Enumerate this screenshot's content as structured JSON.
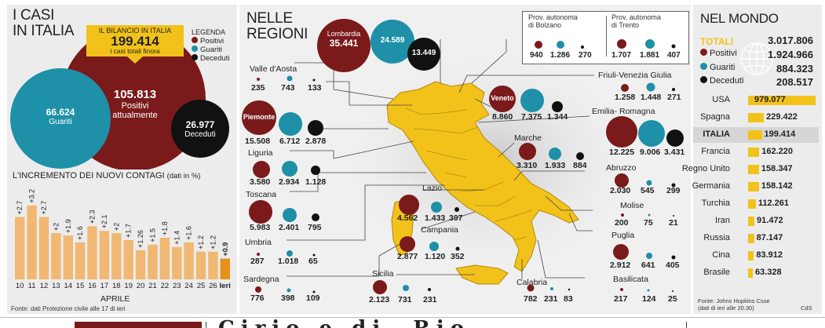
{
  "left": {
    "title_line1": "I CASI",
    "title_line2": "IN ITALIA",
    "bilancio_title": "IL BILANCIO IN ITALIA",
    "bilancio_value": "199.414",
    "bilancio_sub": "i casi totali finora",
    "legend_title": "LEGENDA",
    "legend": [
      {
        "label": "Positivi",
        "color": "#7a1a1a"
      },
      {
        "label": "Guariti",
        "color": "#1e90a8"
      },
      {
        "label": "Deceduti",
        "color": "#111111"
      }
    ],
    "positivi_value": "105.813",
    "positivi_label1": "Positivi",
    "positivi_label2": "attualmente",
    "guariti_value": "66.624",
    "guariti_label": "Guariti",
    "deceduti_value": "26.977",
    "deceduti_label": "Deceduti",
    "increment_title": "L'INCREMENTO DEI NUOVI CONTAGI",
    "increment_note": "(dati in %)",
    "month": "APRILE",
    "source": "Fonte: dati Protezione civile alle 17 di ieri"
  },
  "chart_data": {
    "type": "bar",
    "title": "L'INCREMENTO DEI NUOVI CONTAGI (dati in %)",
    "xlabel": "APRILE",
    "categories": [
      "10",
      "11",
      "12",
      "13",
      "14",
      "15",
      "16",
      "17",
      "18",
      "19",
      "20",
      "21",
      "22",
      "23",
      "24",
      "25",
      "26",
      "Ieri"
    ],
    "values": [
      2.7,
      3.2,
      2.7,
      2,
      1.9,
      1.6,
      2.3,
      2.1,
      2,
      1.7,
      1.26,
      1.5,
      1.8,
      1.4,
      1.6,
      1.2,
      1.2,
      0.9
    ],
    "value_labels": [
      "+2.7",
      "+3.2",
      "+2.7",
      "+2",
      "+1.9",
      "+1.6",
      "+2.3",
      "+2.1",
      "+2",
      "+1.7",
      "+1.26",
      "+1.5",
      "+1.8",
      "+1.4",
      "+1.6",
      "+1.2",
      "+1.2",
      "+0.9"
    ],
    "ylim": [
      0,
      3.6
    ]
  },
  "regions": {
    "title_line1": "NELLE",
    "title_line2": "REGIONI",
    "items": [
      {
        "name": "Valle d'Aosta",
        "p": "235",
        "g": "743",
        "d": "133"
      },
      {
        "name": "Piemonte",
        "p": "15.508",
        "g": "6.712",
        "d": "2.878"
      },
      {
        "name": "Liguria",
        "p": "3.580",
        "g": "2.934",
        "d": "1.128"
      },
      {
        "name": "Toscana",
        "p": "5.983",
        "g": "2.401",
        "d": "795"
      },
      {
        "name": "Umbria",
        "p": "287",
        "g": "1.018",
        "d": "65"
      },
      {
        "name": "Sardegna",
        "p": "776",
        "g": "398",
        "d": "109"
      },
      {
        "name": "Lombardia",
        "p": "35.441",
        "g": "24.589",
        "d": "13.449"
      },
      {
        "name": "Veneto",
        "p": "8.860",
        "g": "7.375",
        "d": "1.344"
      },
      {
        "name": "Friuli-Venezia Giulia",
        "p": "1.258",
        "g": "1.448",
        "d": "271"
      },
      {
        "name": "Emilia- Romagna",
        "p": "12.225",
        "g": "9.006",
        "d": "3.431"
      },
      {
        "name": "Marche",
        "p": "3.310",
        "g": "1.933",
        "d": "884"
      },
      {
        "name": "Abruzzo",
        "p": "2.030",
        "g": "545",
        "d": "299"
      },
      {
        "name": "Molise",
        "p": "200",
        "g": "75",
        "d": "21"
      },
      {
        "name": "Puglia",
        "p": "2.912",
        "g": "641",
        "d": "405"
      },
      {
        "name": "Lazio",
        "p": "4.562",
        "g": "1.433",
        "d": "397"
      },
      {
        "name": "Campania",
        "p": "2.877",
        "g": "1.120",
        "d": "352"
      },
      {
        "name": "Sicilia",
        "p": "2.123",
        "g": "731",
        "d": "231"
      },
      {
        "name": "Calabria",
        "p": "782",
        "g": "231",
        "d": "83"
      },
      {
        "name": "Basilicata",
        "p": "217",
        "g": "124",
        "d": "25"
      },
      {
        "name": "Prov. autonoma di Bolzano",
        "p": "940",
        "g": "1.286",
        "d": "270"
      },
      {
        "name": "Prov. autonoma di Trento",
        "p": "1.707",
        "g": "1.881",
        "d": "407"
      }
    ]
  },
  "world": {
    "title": "NEL MONDO",
    "totali_label": "TOTALI",
    "totali_value": "3.017.806",
    "positivi_label": "Positivi",
    "positivi_value": "1.924.966",
    "guariti_label": "Guariti",
    "guariti_value": "884.323",
    "deceduti_label": "Deceduti",
    "deceduti_value": "208.517",
    "countries": [
      {
        "name": "USA",
        "value": 979077,
        "label": "979.077"
      },
      {
        "name": "Spagna",
        "value": 229422,
        "label": "229.422"
      },
      {
        "name": "ITALIA",
        "value": 199414,
        "label": "199.414"
      },
      {
        "name": "Francia",
        "value": 162220,
        "label": "162.220"
      },
      {
        "name": "Regno Unito",
        "value": 158347,
        "label": "158.347"
      },
      {
        "name": "Germania",
        "value": 158142,
        "label": "158.142"
      },
      {
        "name": "Turchia",
        "value": 112261,
        "label": "112.261"
      },
      {
        "name": "Iran",
        "value": 91472,
        "label": "91.472"
      },
      {
        "name": "Russia",
        "value": 87147,
        "label": "87.147"
      },
      {
        "name": "Cina",
        "value": 83912,
        "label": "83.912"
      },
      {
        "name": "Brasile",
        "value": 63328,
        "label": "63.328"
      }
    ],
    "source_line1": "Fonte: Johns Hopkins Csse",
    "source_line2": "(dati di ieri alle 20.30)",
    "credit": "CdS"
  },
  "footer_text": "Cirio e di  Rio"
}
